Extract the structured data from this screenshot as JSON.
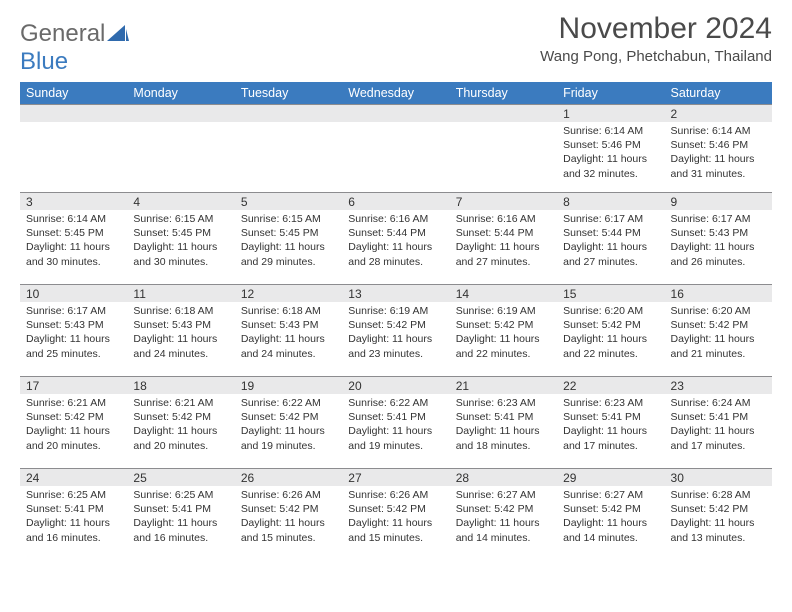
{
  "logo": {
    "text_general": "General",
    "text_blue": "Blue",
    "icon_color": "#2f6aad"
  },
  "title": {
    "month_year": "November 2024",
    "location": "Wang Pong, Phetchabun, Thailand"
  },
  "colors": {
    "header_bg": "#3b7bbf",
    "header_text": "#ffffff",
    "daynum_bg": "#e9e9ea",
    "daynum_border": "#8c8c8f",
    "body_text": "#333333",
    "title_text": "#4a4a4a",
    "logo_gray": "#6a6a6a",
    "logo_blue": "#3b7bbf"
  },
  "fonts": {
    "title_size_pt": 22,
    "location_size_pt": 11,
    "header_size_pt": 9,
    "daynum_size_pt": 9,
    "info_size_pt": 8
  },
  "day_names": [
    "Sunday",
    "Monday",
    "Tuesday",
    "Wednesday",
    "Thursday",
    "Friday",
    "Saturday"
  ],
  "calendar": {
    "type": "table",
    "columns": 7,
    "rows": 5,
    "leading_blanks": 5,
    "days": [
      {
        "n": "1",
        "sr": "6:14 AM",
        "ss": "5:46 PM",
        "dl": "11 hours and 32 minutes."
      },
      {
        "n": "2",
        "sr": "6:14 AM",
        "ss": "5:46 PM",
        "dl": "11 hours and 31 minutes."
      },
      {
        "n": "3",
        "sr": "6:14 AM",
        "ss": "5:45 PM",
        "dl": "11 hours and 30 minutes."
      },
      {
        "n": "4",
        "sr": "6:15 AM",
        "ss": "5:45 PM",
        "dl": "11 hours and 30 minutes."
      },
      {
        "n": "5",
        "sr": "6:15 AM",
        "ss": "5:45 PM",
        "dl": "11 hours and 29 minutes."
      },
      {
        "n": "6",
        "sr": "6:16 AM",
        "ss": "5:44 PM",
        "dl": "11 hours and 28 minutes."
      },
      {
        "n": "7",
        "sr": "6:16 AM",
        "ss": "5:44 PM",
        "dl": "11 hours and 27 minutes."
      },
      {
        "n": "8",
        "sr": "6:17 AM",
        "ss": "5:44 PM",
        "dl": "11 hours and 27 minutes."
      },
      {
        "n": "9",
        "sr": "6:17 AM",
        "ss": "5:43 PM",
        "dl": "11 hours and 26 minutes."
      },
      {
        "n": "10",
        "sr": "6:17 AM",
        "ss": "5:43 PM",
        "dl": "11 hours and 25 minutes."
      },
      {
        "n": "11",
        "sr": "6:18 AM",
        "ss": "5:43 PM",
        "dl": "11 hours and 24 minutes."
      },
      {
        "n": "12",
        "sr": "6:18 AM",
        "ss": "5:43 PM",
        "dl": "11 hours and 24 minutes."
      },
      {
        "n": "13",
        "sr": "6:19 AM",
        "ss": "5:42 PM",
        "dl": "11 hours and 23 minutes."
      },
      {
        "n": "14",
        "sr": "6:19 AM",
        "ss": "5:42 PM",
        "dl": "11 hours and 22 minutes."
      },
      {
        "n": "15",
        "sr": "6:20 AM",
        "ss": "5:42 PM",
        "dl": "11 hours and 22 minutes."
      },
      {
        "n": "16",
        "sr": "6:20 AM",
        "ss": "5:42 PM",
        "dl": "11 hours and 21 minutes."
      },
      {
        "n": "17",
        "sr": "6:21 AM",
        "ss": "5:42 PM",
        "dl": "11 hours and 20 minutes."
      },
      {
        "n": "18",
        "sr": "6:21 AM",
        "ss": "5:42 PM",
        "dl": "11 hours and 20 minutes."
      },
      {
        "n": "19",
        "sr": "6:22 AM",
        "ss": "5:42 PM",
        "dl": "11 hours and 19 minutes."
      },
      {
        "n": "20",
        "sr": "6:22 AM",
        "ss": "5:41 PM",
        "dl": "11 hours and 19 minutes."
      },
      {
        "n": "21",
        "sr": "6:23 AM",
        "ss": "5:41 PM",
        "dl": "11 hours and 18 minutes."
      },
      {
        "n": "22",
        "sr": "6:23 AM",
        "ss": "5:41 PM",
        "dl": "11 hours and 17 minutes."
      },
      {
        "n": "23",
        "sr": "6:24 AM",
        "ss": "5:41 PM",
        "dl": "11 hours and 17 minutes."
      },
      {
        "n": "24",
        "sr": "6:25 AM",
        "ss": "5:41 PM",
        "dl": "11 hours and 16 minutes."
      },
      {
        "n": "25",
        "sr": "6:25 AM",
        "ss": "5:41 PM",
        "dl": "11 hours and 16 minutes."
      },
      {
        "n": "26",
        "sr": "6:26 AM",
        "ss": "5:42 PM",
        "dl": "11 hours and 15 minutes."
      },
      {
        "n": "27",
        "sr": "6:26 AM",
        "ss": "5:42 PM",
        "dl": "11 hours and 15 minutes."
      },
      {
        "n": "28",
        "sr": "6:27 AM",
        "ss": "5:42 PM",
        "dl": "11 hours and 14 minutes."
      },
      {
        "n": "29",
        "sr": "6:27 AM",
        "ss": "5:42 PM",
        "dl": "11 hours and 14 minutes."
      },
      {
        "n": "30",
        "sr": "6:28 AM",
        "ss": "5:42 PM",
        "dl": "11 hours and 13 minutes."
      }
    ],
    "labels": {
      "sunrise": "Sunrise:",
      "sunset": "Sunset:",
      "daylight": "Daylight:"
    }
  }
}
